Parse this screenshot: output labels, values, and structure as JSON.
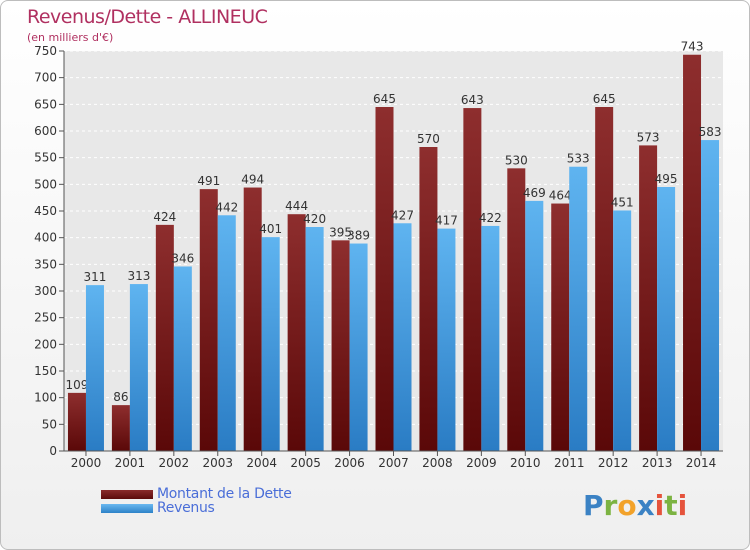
{
  "header": {
    "title": "Revenus/Dette - ALLINEUC",
    "subtitle": "(en milliers d'€)"
  },
  "legend": {
    "debt_label": "Montant de la Dette",
    "revenue_label": "Revenus"
  },
  "logo": {
    "letters": [
      "P",
      "r",
      "o",
      "x",
      "i",
      "t",
      "i"
    ]
  },
  "colors": {
    "debt": "#7a1f1f",
    "revenue": "#4aa3e6",
    "title": "#b03060"
  },
  "chart_data": {
    "type": "bar",
    "title": "Revenus/Dette - ALLINEUC",
    "ylabel": "(en milliers d'€)",
    "xlabel": "",
    "ylim": [
      0,
      750
    ],
    "yticks": [
      0,
      50,
      100,
      150,
      200,
      250,
      300,
      350,
      400,
      450,
      500,
      550,
      600,
      650,
      700,
      750
    ],
    "grid": true,
    "legend_position": "bottom-left",
    "categories": [
      "2000",
      "2001",
      "2002",
      "2003",
      "2004",
      "2005",
      "2006",
      "2007",
      "2008",
      "2009",
      "2010",
      "2011",
      "2012",
      "2013",
      "2014"
    ],
    "series": [
      {
        "name": "Montant de la Dette",
        "values": [
          109,
          86,
          424,
          491,
          494,
          444,
          395,
          645,
          570,
          643,
          530,
          464,
          645,
          573,
          743
        ]
      },
      {
        "name": "Revenus",
        "values": [
          311,
          313,
          346,
          442,
          401,
          420,
          389,
          427,
          417,
          422,
          469,
          533,
          451,
          495,
          583
        ]
      }
    ]
  }
}
